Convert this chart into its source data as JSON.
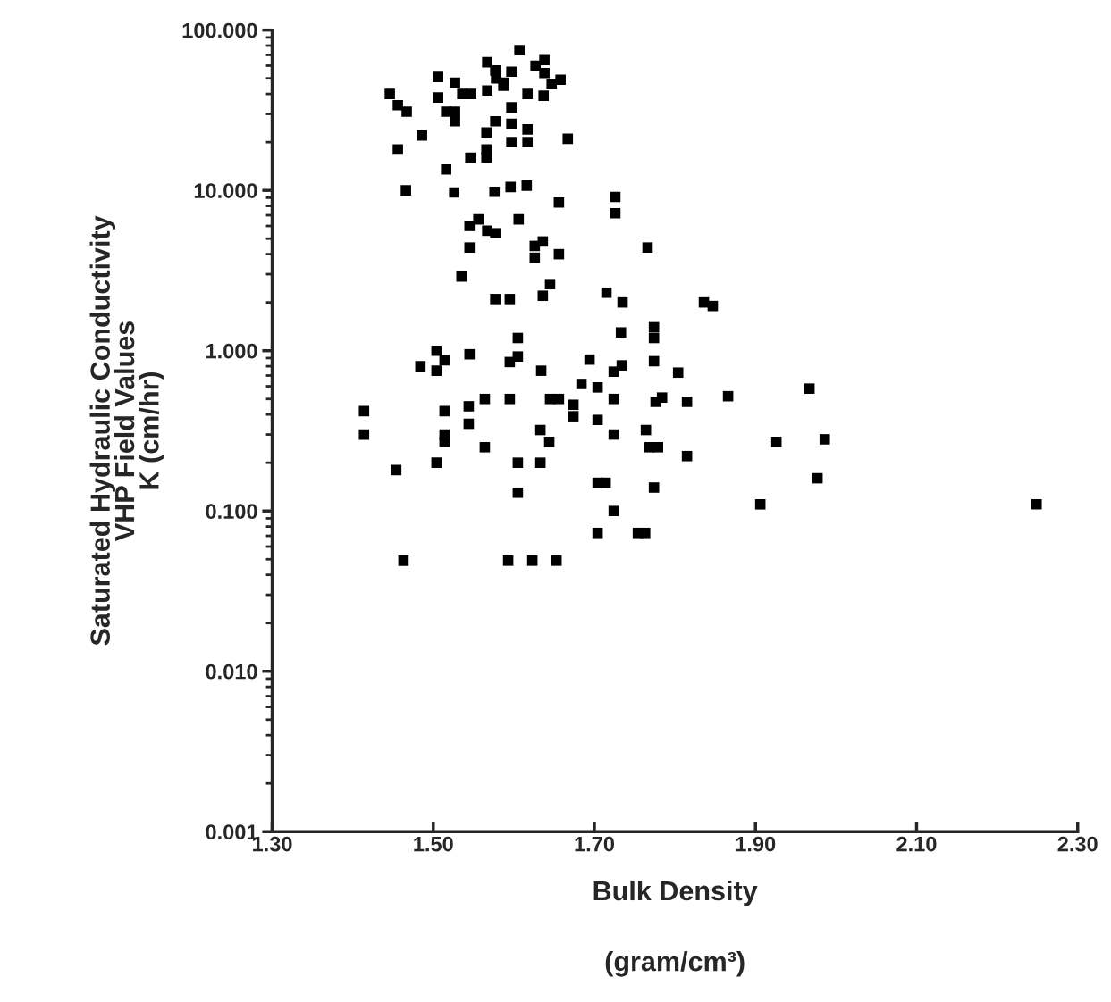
{
  "chart_data": {
    "type": "scatter",
    "xlabel": "Bulk Density\n\n(gram/cm³)",
    "ylabel": "Saturated Hydraulic Conductivity\nVHP Field Values\nK (cm/hr)",
    "log": "y",
    "grid": false,
    "legend": false,
    "marker": "square",
    "xlim": [
      1.3,
      2.3
    ],
    "ylim": [
      0.001,
      100
    ],
    "xticks": [
      {
        "value": 1.3,
        "label": "1.30"
      },
      {
        "value": 1.5,
        "label": "1.50"
      },
      {
        "value": 1.7,
        "label": "1.70"
      },
      {
        "value": 1.9,
        "label": "1.90"
      },
      {
        "value": 2.1,
        "label": "2.10"
      },
      {
        "value": 2.3,
        "label": "2.30"
      }
    ],
    "yticks": [
      {
        "value": 0.001,
        "label": "0.001"
      },
      {
        "value": 0.01,
        "label": "0.010"
      },
      {
        "value": 0.1,
        "label": "0.100"
      },
      {
        "value": 1,
        "label": "1.000"
      },
      {
        "value": 10,
        "label": "10.000"
      },
      {
        "value": 100,
        "label": "100.000"
      }
    ],
    "series": [
      {
        "color": "#000000",
        "x": [
          1.607,
          1.567,
          1.638,
          1.627,
          1.638,
          1.577,
          1.597,
          1.578,
          1.588,
          1.587,
          1.506,
          1.527,
          1.658,
          1.647,
          1.446,
          1.506,
          1.536,
          1.547,
          1.567,
          1.617,
          1.637,
          1.456,
          1.467,
          1.516,
          1.527,
          1.527,
          1.597,
          1.577,
          1.597,
          1.566,
          1.617,
          1.617,
          1.597,
          1.667,
          1.486,
          1.456,
          1.566,
          1.566,
          1.546,
          1.516,
          1.466,
          1.526,
          1.576,
          1.596,
          1.616,
          1.656,
          1.726,
          1.726,
          1.556,
          1.545,
          1.567,
          1.577,
          1.606,
          1.636,
          1.626,
          1.545,
          1.626,
          1.656,
          1.535,
          1.645,
          1.577,
          1.595,
          1.636,
          1.715,
          1.735,
          1.766,
          1.836,
          1.847,
          1.733,
          1.774,
          1.774,
          1.605,
          1.504,
          1.514,
          1.545,
          1.484,
          1.504,
          1.605,
          1.595,
          1.634,
          1.694,
          1.734,
          1.724,
          1.774,
          1.804,
          1.684,
          1.704,
          1.414,
          1.514,
          1.544,
          1.564,
          1.595,
          1.645,
          1.656,
          1.674,
          1.674,
          1.704,
          1.724,
          1.776,
          1.784,
          1.815,
          1.866,
          1.414,
          1.514,
          1.514,
          1.544,
          1.564,
          1.633,
          1.644,
          1.724,
          1.764,
          1.768,
          1.779,
          1.815,
          1.504,
          1.454,
          1.605,
          1.633,
          1.605,
          1.704,
          1.714,
          1.774,
          1.724,
          1.704,
          1.754,
          1.763,
          1.463,
          1.593,
          1.623,
          1.653,
          1.967,
          1.926,
          1.986,
          1.977,
          1.906,
          2.249
        ],
        "values": [
          75,
          63,
          65,
          60,
          54,
          56,
          55,
          50,
          47,
          45,
          51,
          47,
          49,
          46,
          40,
          38,
          40,
          40,
          42,
          40,
          39,
          34,
          31,
          31,
          31,
          27,
          33,
          27,
          26,
          23,
          24,
          20,
          20,
          21,
          22,
          18,
          18,
          16,
          16,
          13.5,
          10,
          9.7,
          9.8,
          10.5,
          10.7,
          8.4,
          9.1,
          7.2,
          6.6,
          6.0,
          5.6,
          5.4,
          6.6,
          4.8,
          4.5,
          4.4,
          3.8,
          4.0,
          2.9,
          2.6,
          2.1,
          2.1,
          2.2,
          2.3,
          2.0,
          4.4,
          2.0,
          1.9,
          1.3,
          1.4,
          1.2,
          1.2,
          1.0,
          0.87,
          0.95,
          0.8,
          0.75,
          0.92,
          0.85,
          0.75,
          0.88,
          0.81,
          0.74,
          0.86,
          0.73,
          0.62,
          0.59,
          0.42,
          0.42,
          0.45,
          0.5,
          0.5,
          0.5,
          0.5,
          0.46,
          0.39,
          0.37,
          0.5,
          0.48,
          0.51,
          0.48,
          0.52,
          0.3,
          0.3,
          0.27,
          0.35,
          0.25,
          0.32,
          0.27,
          0.3,
          0.32,
          0.25,
          0.25,
          0.22,
          0.2,
          0.18,
          0.2,
          0.2,
          0.13,
          0.15,
          0.15,
          0.14,
          0.1,
          0.073,
          0.073,
          0.073,
          0.049,
          0.049,
          0.049,
          0.049,
          0.58,
          0.27,
          0.28,
          0.16,
          0.11,
          0.11
        ]
      }
    ]
  }
}
